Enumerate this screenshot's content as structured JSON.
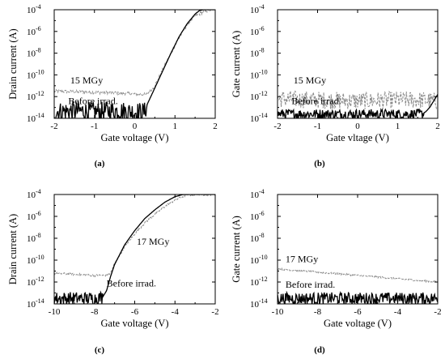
{
  "chart_data": [
    {
      "type": "line",
      "panel_label": "(a)",
      "xlabel": "Gate voltage (V)",
      "ylabel": "Drain current (A)",
      "xlim": [
        -2,
        2
      ],
      "ylim_log10": [
        -14,
        -4
      ],
      "y_scale": "log",
      "x_ticks": [
        -2,
        -1,
        0,
        1,
        2
      ],
      "x_tick_labels": [
        "-2",
        "-1",
        "0",
        "1",
        "2"
      ],
      "y_ticks": [
        -14,
        -12,
        -10,
        -8,
        -6,
        -4
      ],
      "y_tick_labels": [
        "10",
        "10",
        "10",
        "10",
        "10",
        "10"
      ],
      "y_tick_exponents": [
        "-14",
        "-12",
        "-10",
        "-8",
        "-6",
        "-4"
      ],
      "annotations": [
        {
          "text": "15 MGy",
          "x": -1.6,
          "y_log10": -10.8
        },
        {
          "text": "Before irrad.",
          "x": -1.65,
          "y_log10": -12.7
        }
      ],
      "series": [
        {
          "style": "gray-dashed",
          "color": "#8a8a8a",
          "x": [
            -2,
            -1.5,
            -1,
            -0.5,
            0,
            0.2,
            0.3,
            0.5,
            0.7,
            0.9,
            1.1,
            1.3,
            1.5,
            1.7,
            1.9,
            2.0
          ],
          "y_log10": [
            -11.5,
            -11.55,
            -11.6,
            -11.65,
            -11.75,
            -11.8,
            -11.8,
            -11.0,
            -9.5,
            -8.0,
            -6.6,
            -5.4,
            -4.6,
            -4.2,
            -4.0,
            -4.0
          ],
          "noise": 0.15
        },
        {
          "style": "black-solid",
          "color": "#000000",
          "x": [
            -2,
            -1.5,
            -1,
            -0.5,
            0,
            0.25,
            0.3,
            0.5,
            0.7,
            0.9,
            1.1,
            1.3,
            1.5,
            1.6,
            1.7,
            1.8,
            2.0
          ],
          "y_log10": [
            -13.4,
            -13.3,
            -13.4,
            -13.3,
            -13.4,
            -13.4,
            -12.8,
            -11.2,
            -9.6,
            -8.0,
            -6.5,
            -5.3,
            -4.4,
            -4.1,
            -4.0,
            -4.0,
            -4.0
          ],
          "noise_until_x": 0.3,
          "noise": 0.9
        }
      ]
    },
    {
      "type": "line",
      "panel_label": "(b)",
      "xlabel": "Gate vltage (V)",
      "ylabel": "Gate current (A)",
      "xlim": [
        -2,
        2
      ],
      "ylim_log10": [
        -14,
        -4
      ],
      "y_scale": "log",
      "x_ticks": [
        -2,
        -1,
        0,
        1,
        2
      ],
      "x_tick_labels": [
        "-2",
        "-1",
        "0",
        "1",
        "2"
      ],
      "y_ticks": [
        -14,
        -12,
        -10,
        -8,
        -6,
        -4
      ],
      "y_tick_labels": [
        "10",
        "10",
        "10",
        "10",
        "10",
        "10"
      ],
      "y_tick_exponents": [
        "-14",
        "-12",
        "-10",
        "-8",
        "-6",
        "-4"
      ],
      "annotations": [
        {
          "text": "15 MGy",
          "x": -1.6,
          "y_log10": -10.8
        },
        {
          "text": "Before irrad.",
          "x": -1.65,
          "y_log10": -12.7
        }
      ],
      "series": [
        {
          "style": "gray-dashed",
          "color": "#8a8a8a",
          "x": [
            -2,
            -1,
            0,
            1,
            1.6,
            1.9,
            2.0
          ],
          "y_log10": [
            -12.2,
            -12.3,
            -12.4,
            -12.3,
            -12.3,
            -12.4,
            -12.5
          ],
          "noise": 0.8
        },
        {
          "style": "black-solid",
          "color": "#000000",
          "x": [
            -2,
            -1,
            0,
            1,
            1.6,
            1.7,
            1.8,
            1.9,
            2.0
          ],
          "y_log10": [
            -13.6,
            -13.6,
            -13.6,
            -13.6,
            -13.6,
            -13.4,
            -13.0,
            -12.4,
            -11.8
          ],
          "noise_until_x": 1.65,
          "noise": 0.45
        }
      ]
    },
    {
      "type": "line",
      "panel_label": "(c)",
      "xlabel": "Gate voltage (V)",
      "ylabel": "Drain current (A)",
      "xlim": [
        -10,
        -2
      ],
      "ylim_log10": [
        -14,
        -4
      ],
      "y_scale": "log",
      "x_ticks": [
        -10,
        -8,
        -6,
        -4,
        -2
      ],
      "x_tick_labels": [
        "-10",
        "-8",
        "-6",
        "-4",
        "-2"
      ],
      "y_ticks": [
        -14,
        -12,
        -10,
        -8,
        -6,
        -4
      ],
      "y_tick_labels": [
        "10",
        "10",
        "10",
        "10",
        "10",
        "10"
      ],
      "y_tick_exponents": [
        "-14",
        "-12",
        "-10",
        "-8",
        "-6",
        "-4"
      ],
      "annotations": [
        {
          "text": "17 MGy",
          "x": -5.9,
          "y_log10": -8.6
        },
        {
          "text": "Before irrad.",
          "x": -7.4,
          "y_log10": -12.4
        }
      ],
      "series": [
        {
          "style": "gray-dashed",
          "color": "#8a8a8a",
          "x": [
            -10,
            -9,
            -8,
            -7.5,
            -7.2,
            -7.0,
            -6.5,
            -6.0,
            -5.5,
            -5.0,
            -4.5,
            -4.0,
            -3.5,
            -3.0
          ],
          "y_log10": [
            -11.2,
            -11.3,
            -11.4,
            -11.4,
            -11.2,
            -10.3,
            -8.8,
            -7.6,
            -6.6,
            -5.8,
            -5.1,
            -4.5,
            -4.1,
            -4.0
          ],
          "noise": 0.1
        },
        {
          "style": "black-solid",
          "color": "#000000",
          "x": [
            -10,
            -9,
            -8,
            -7.6,
            -7.4,
            -7.2,
            -7.0,
            -6.5,
            -6.0,
            -5.5,
            -5.0,
            -4.5,
            -4.0,
            -3.6,
            -3.0
          ],
          "y_log10": [
            -13.5,
            -13.5,
            -13.5,
            -13.4,
            -12.8,
            -11.5,
            -10.4,
            -8.6,
            -7.3,
            -6.2,
            -5.4,
            -4.7,
            -4.2,
            -4.0,
            -4.0
          ],
          "noise_until_x": -7.6,
          "noise": 0.6
        }
      ]
    },
    {
      "type": "line",
      "panel_label": "(d)",
      "xlabel": "Gate voltage (V)",
      "ylabel": "Gate current (A)",
      "xlim": [
        -10,
        -2
      ],
      "ylim_log10": [
        -14,
        -4
      ],
      "y_scale": "log",
      "x_ticks": [
        -10,
        -8,
        -6,
        -4,
        -2
      ],
      "x_tick_labels": [
        "-10",
        "-8",
        "-6",
        "-4",
        "-2"
      ],
      "y_ticks": [
        -14,
        -12,
        -10,
        -8,
        -6,
        -4
      ],
      "y_tick_labels": [
        "10",
        "10",
        "10",
        "10",
        "10",
        "10"
      ],
      "y_tick_exponents": [
        "-14",
        "-12",
        "-10",
        "-8",
        "-6",
        "-4"
      ],
      "annotations": [
        {
          "text": "17 MGy",
          "x": -9.6,
          "y_log10": -10.2
        },
        {
          "text": "Before irrad.",
          "x": -9.6,
          "y_log10": -12.5
        }
      ],
      "series": [
        {
          "style": "gray-dashed",
          "color": "#8a8a8a",
          "x": [
            -10,
            -9,
            -8,
            -7,
            -6,
            -5,
            -4,
            -3,
            -2
          ],
          "y_log10": [
            -10.8,
            -10.95,
            -11.1,
            -11.25,
            -11.4,
            -11.55,
            -11.7,
            -11.85,
            -12.0
          ],
          "noise": 0.08
        },
        {
          "style": "black-solid",
          "color": "#000000",
          "x": [
            -10,
            -8,
            -6,
            -4,
            -2
          ],
          "y_log10": [
            -13.5,
            -13.5,
            -13.5,
            -13.5,
            -13.5
          ],
          "noise_until_x": -2,
          "noise": 0.55
        }
      ]
    }
  ]
}
